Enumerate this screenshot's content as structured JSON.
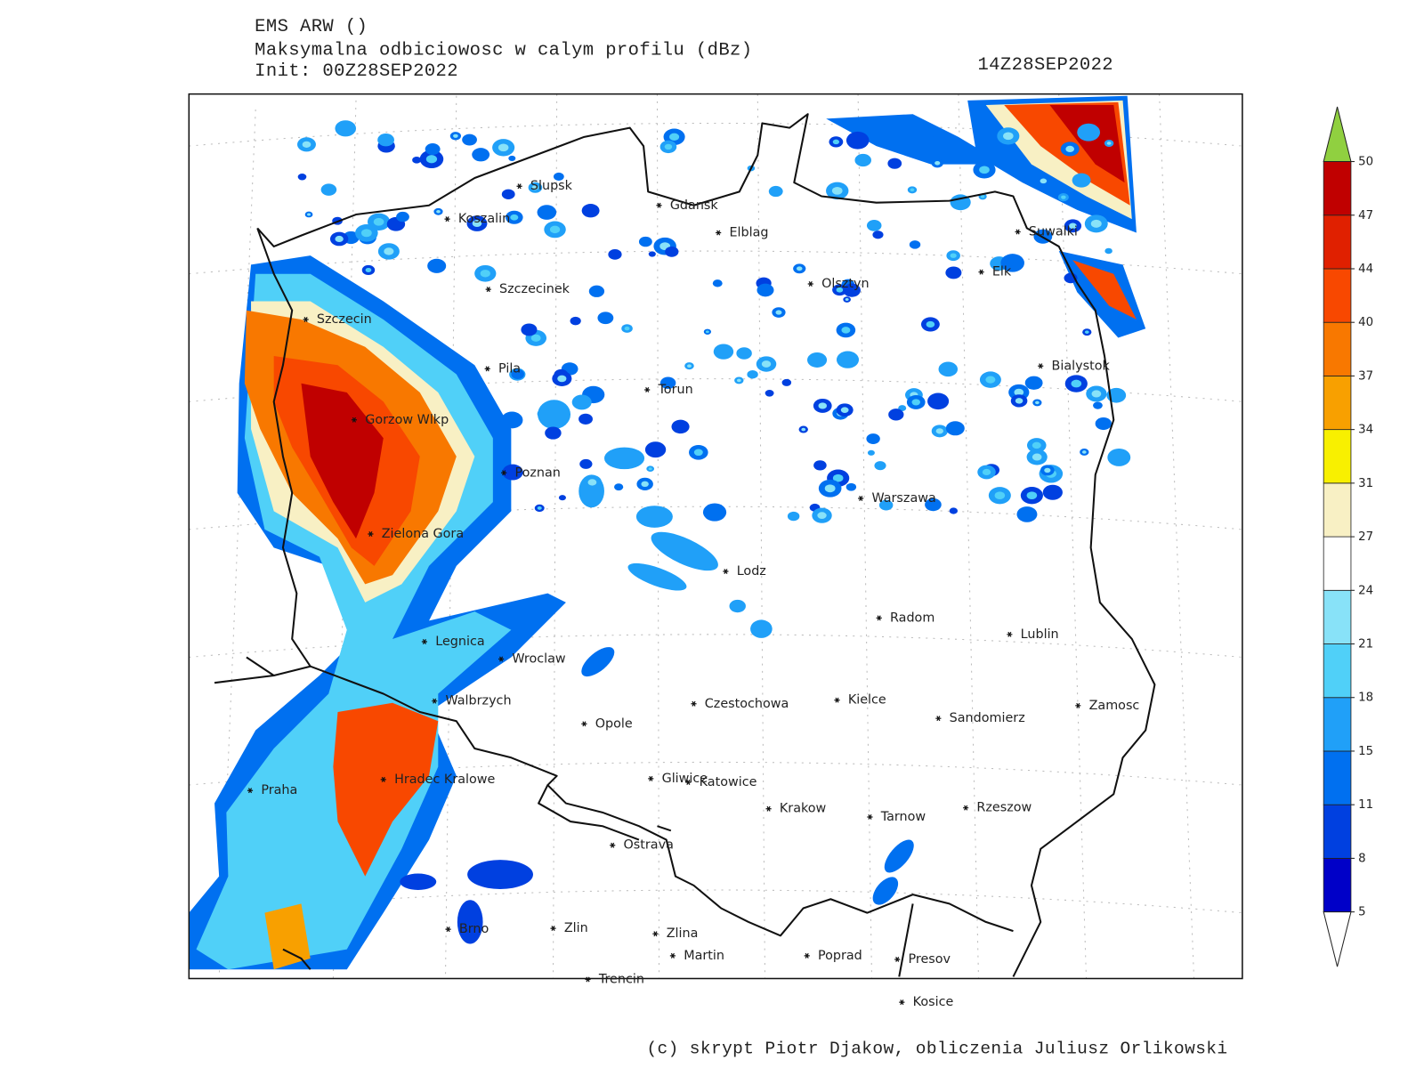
{
  "header": {
    "model": "EMS ARW ()",
    "field": "Maksymalna odbiciowosc w calym profilu (dBz)",
    "init": "Init: 00Z28SEP2022",
    "valid": "14Z28SEP2022"
  },
  "colorbar": {
    "levels": [
      5,
      8,
      11,
      15,
      18,
      21,
      24,
      27,
      31,
      34,
      37,
      40,
      44,
      47,
      50
    ],
    "colors": [
      "#0000c8",
      "#0040e0",
      "#0070f0",
      "#20a0f8",
      "#50d0f8",
      "#88e2f8",
      "#ffffff",
      "#f8f0c4",
      "#f8f000",
      "#f8a000",
      "#f87800",
      "#f84800",
      "#e02000",
      "#c00000"
    ],
    "below_color": "#ffffff",
    "above_color": "#90d040"
  },
  "cities": [
    "Slupsk",
    "Koszalin",
    "Gdansk",
    "Elblag",
    "Suwalki",
    "Szczecinek",
    "Olsztyn",
    "Elk",
    "Szczecin",
    "Pila",
    "Torun",
    "Bialystok",
    "Gorzow Wlkp",
    "Poznan",
    "Warszawa",
    "Zielona Gora",
    "Lodz",
    "Radom",
    "Lublin",
    "Legnica",
    "Wroclaw",
    "Walbrzych",
    "Czestochowa",
    "Kielce",
    "Opole",
    "Sandomierz",
    "Zamosc",
    "Praha",
    "Hradec Kralowe",
    "Gliwice",
    "Katowice",
    "Krakow",
    "Tarnow",
    "Rzeszow",
    "Ostrava",
    "Brno",
    "Zlin",
    "Zlina",
    "Martin",
    "Poprad",
    "Presov",
    "Trencin",
    "Kosice"
  ],
  "credit": "(c) skrypt Piotr Djakow, obliczenia Juliusz Orlikowski"
}
